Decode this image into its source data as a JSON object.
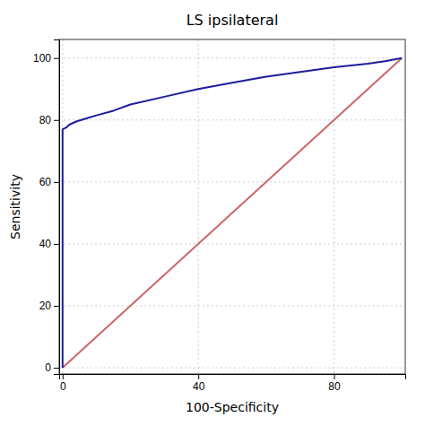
{
  "chart_data": {
    "type": "line",
    "title": "LS ipsilateral",
    "xlabel": "100-Specificity",
    "ylabel": "Sensitivity",
    "xlim": [
      -1,
      101
    ],
    "ylim": [
      -2,
      106
    ],
    "xticks": [
      0,
      40,
      80
    ],
    "yticks": [
      0,
      20,
      40,
      60,
      80,
      100
    ],
    "grid": true,
    "series": [
      {
        "color": "#cc6666",
        "x": [
          0,
          100
        ],
        "values": [
          0,
          100
        ]
      },
      {
        "color": "#1c1c9c",
        "x": [
          0,
          0,
          1,
          2,
          4,
          7,
          10,
          15,
          20,
          30,
          40,
          50,
          60,
          70,
          80,
          90,
          95,
          100
        ],
        "values": [
          0,
          77,
          77.5,
          78.5,
          79.5,
          80.5,
          81.5,
          83,
          85,
          87.5,
          90,
          92,
          94,
          95.5,
          97,
          98.2,
          99,
          100
        ]
      }
    ]
  }
}
